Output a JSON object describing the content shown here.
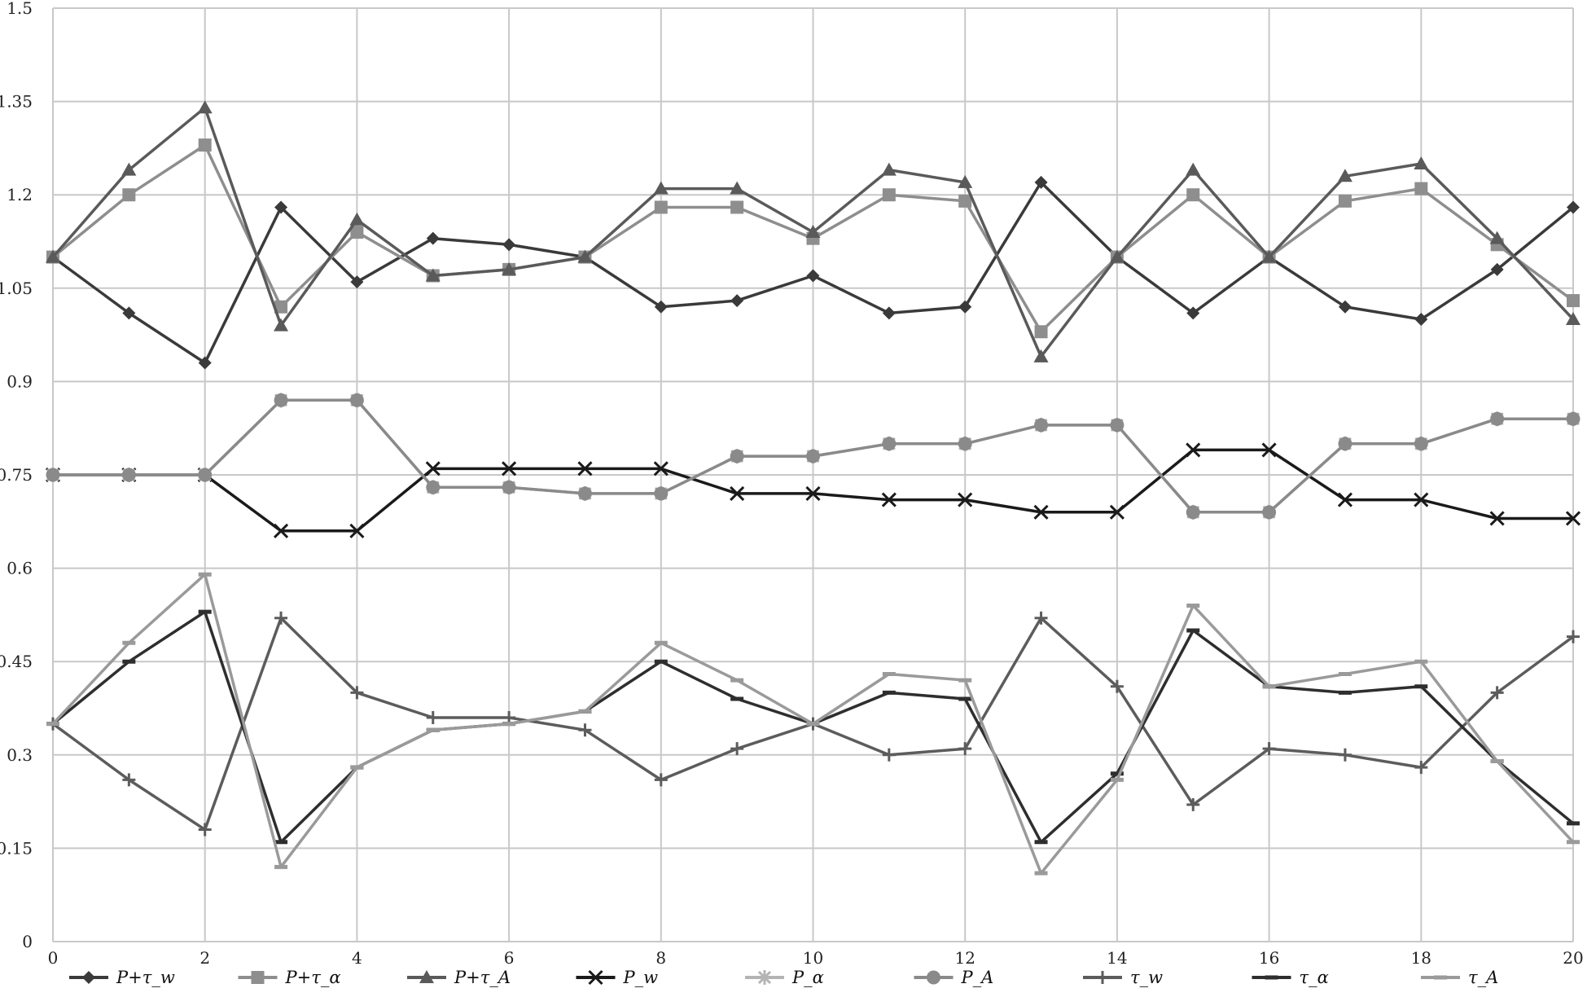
{
  "chart_data": {
    "type": "line",
    "title": "",
    "xlabel": "",
    "ylabel": "",
    "xlim": [
      0,
      20
    ],
    "ylim": [
      0,
      1.5
    ],
    "grid": true,
    "legend_position": "bottom",
    "x": [
      0,
      1,
      2,
      3,
      4,
      5,
      6,
      7,
      8,
      9,
      10,
      11,
      12,
      13,
      14,
      15,
      16,
      17,
      18,
      19,
      20
    ],
    "x_ticks": [
      "0",
      "2",
      "4",
      "6",
      "8",
      "10",
      "12",
      "14",
      "16",
      "18",
      "20"
    ],
    "y_ticks": [
      "0",
      "0.15",
      "0.3",
      "0.45",
      "0.6",
      "0.75",
      "0.9",
      "1.05",
      "1.2",
      "1.35",
      "1.5"
    ],
    "series": [
      {
        "name": "P+τ_w",
        "color": "#3a3a3a",
        "marker": "diamond",
        "values": [
          1.1,
          1.01,
          0.93,
          1.18,
          1.06,
          1.13,
          1.12,
          1.1,
          1.02,
          1.03,
          1.07,
          1.01,
          1.02,
          1.22,
          1.1,
          1.01,
          1.1,
          1.02,
          1.0,
          1.08,
          1.18
        ]
      },
      {
        "name": "P+τ_α",
        "color": "#8e8e8e",
        "marker": "square",
        "values": [
          1.1,
          1.2,
          1.28,
          1.02,
          1.14,
          1.07,
          1.08,
          1.1,
          1.18,
          1.18,
          1.13,
          1.2,
          1.19,
          0.98,
          1.1,
          1.2,
          1.1,
          1.19,
          1.21,
          1.12,
          1.03
        ]
      },
      {
        "name": "P+τ_A",
        "color": "#5a5a5a",
        "marker": "triangle",
        "values": [
          1.1,
          1.24,
          1.34,
          0.99,
          1.16,
          1.07,
          1.08,
          1.1,
          1.21,
          1.21,
          1.14,
          1.24,
          1.22,
          0.94,
          1.1,
          1.24,
          1.1,
          1.23,
          1.25,
          1.13,
          1.0
        ]
      },
      {
        "name": "P_w",
        "color": "#1a1a1a",
        "marker": "x",
        "values": [
          0.75,
          0.75,
          0.75,
          0.66,
          0.66,
          0.76,
          0.76,
          0.76,
          0.76,
          0.72,
          0.72,
          0.71,
          0.71,
          0.69,
          0.69,
          0.79,
          0.79,
          0.71,
          0.71,
          0.68,
          0.68
        ]
      },
      {
        "name": "P_α",
        "color": "#b4b4b4",
        "marker": "star",
        "values": [
          0.75,
          0.75,
          0.75,
          0.87,
          0.87,
          0.73,
          0.73,
          0.72,
          0.72,
          0.78,
          0.78,
          0.8,
          0.8,
          0.83,
          0.83,
          0.69,
          0.69,
          0.8,
          0.8,
          0.84,
          0.84
        ]
      },
      {
        "name": "P_A",
        "color": "#8a8a8a",
        "marker": "circle",
        "values": [
          0.75,
          0.75,
          0.75,
          0.87,
          0.87,
          0.73,
          0.73,
          0.72,
          0.72,
          0.78,
          0.78,
          0.8,
          0.8,
          0.83,
          0.83,
          0.69,
          0.69,
          0.8,
          0.8,
          0.84,
          0.84
        ]
      },
      {
        "name": "τ_w",
        "color": "#5c5c5c",
        "marker": "plus",
        "values": [
          0.35,
          0.26,
          0.18,
          0.52,
          0.4,
          0.36,
          0.36,
          0.34,
          0.26,
          0.31,
          0.35,
          0.3,
          0.31,
          0.52,
          0.41,
          0.22,
          0.31,
          0.3,
          0.28,
          0.4,
          0.49
        ]
      },
      {
        "name": "τ_α",
        "color": "#2e2e2e",
        "marker": "dash",
        "values": [
          0.35,
          0.45,
          0.53,
          0.16,
          0.28,
          0.34,
          0.35,
          0.37,
          0.45,
          0.39,
          0.35,
          0.4,
          0.39,
          0.16,
          0.27,
          0.5,
          0.41,
          0.4,
          0.41,
          0.29,
          0.19
        ]
      },
      {
        "name": "τ_A",
        "color": "#9a9a9a",
        "marker": "dash",
        "values": [
          0.35,
          0.48,
          0.59,
          0.12,
          0.28,
          0.34,
          0.35,
          0.37,
          0.48,
          0.42,
          0.35,
          0.43,
          0.42,
          0.11,
          0.26,
          0.54,
          0.41,
          0.43,
          0.45,
          0.29,
          0.16
        ]
      }
    ]
  }
}
